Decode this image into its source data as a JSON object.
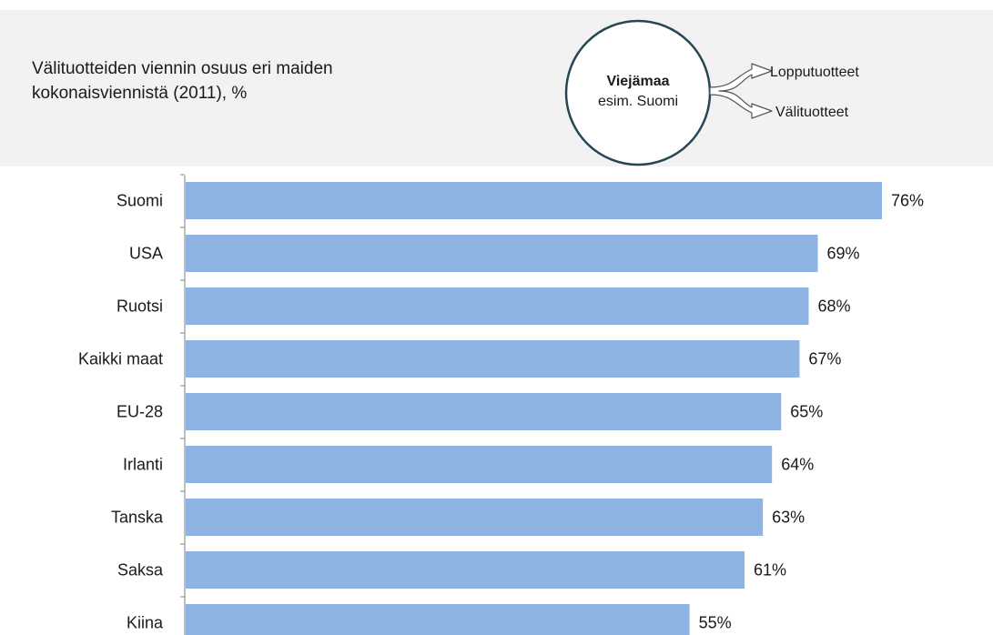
{
  "header": {
    "title": "Välituotteiden viennin osuus eri maiden kokonaisviennistä (2011), %"
  },
  "diagram": {
    "circle_title": "Viejämaa",
    "circle_subtitle": "esim. Suomi",
    "arrow_top_label": "Lopputuotteet",
    "arrow_bottom_label": "Välituotteet"
  },
  "colors": {
    "bar": "#8eb4e3",
    "circle_border": "#264653",
    "header_bg": "#f2f2f2"
  },
  "chart_data": {
    "type": "bar",
    "orientation": "horizontal",
    "categories": [
      "Suomi",
      "USA",
      "Ruotsi",
      "Kaikki maat",
      "EU-28",
      "Irlanti",
      "Tanska",
      "Saksa",
      "Kiina"
    ],
    "values": [
      76,
      69,
      68,
      67,
      65,
      64,
      63,
      61,
      55
    ],
    "value_labels": [
      "76%",
      "69%",
      "68%",
      "67%",
      "65%",
      "64%",
      "63%",
      "61%",
      "55%"
    ],
    "xlim": [
      0,
      80
    ],
    "grid": false,
    "legend": "none"
  }
}
